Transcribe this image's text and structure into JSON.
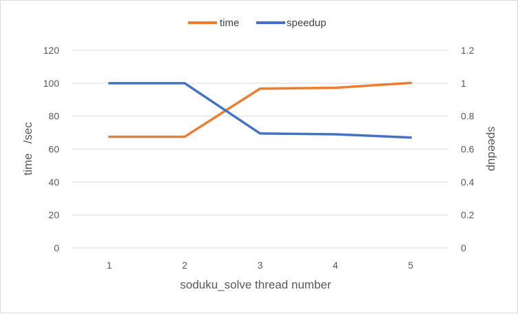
{
  "chart_data": {
    "type": "line",
    "categories": [
      "1",
      "2",
      "3",
      "4",
      "5"
    ],
    "series": [
      {
        "name": "time",
        "axis": "left",
        "color": "#ED7D31",
        "values": [
          67.5,
          67.5,
          96.7,
          97.2,
          100.2
        ]
      },
      {
        "name": "speedup",
        "axis": "right",
        "color": "#4472C4",
        "values": [
          1.0,
          1.0,
          0.695,
          0.69,
          0.67
        ]
      }
    ],
    "xlabel": "soduku_solve thread number",
    "ylabel": "time   /sec",
    "y2label": "speedup",
    "ylim": [
      0,
      120
    ],
    "y2lim": [
      0,
      1.2
    ],
    "yticks": [
      "0",
      "20",
      "40",
      "60",
      "80",
      "100",
      "120"
    ],
    "y2ticks": [
      "0",
      "0.2",
      "0.4",
      "0.6",
      "0.8",
      "1",
      "1.2"
    ],
    "grid": true,
    "legend_position": "top-center"
  }
}
